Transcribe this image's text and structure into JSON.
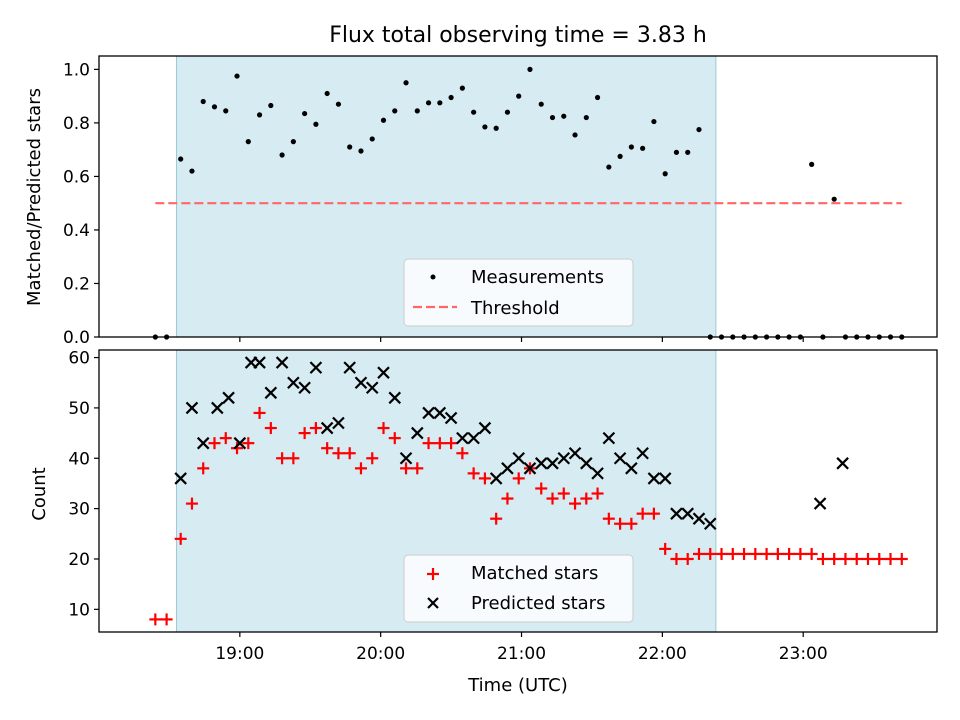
{
  "chart_data": {
    "title": "Flux total observing time = 3.83 h",
    "xlabel": "Time (UTC)",
    "x_unit": "hours UTC",
    "xlim": [
      18.0,
      23.95
    ],
    "xticks": [
      {
        "value": 19,
        "label": "19:00"
      },
      {
        "value": 20,
        "label": "20:00"
      },
      {
        "value": 21,
        "label": "21:00"
      },
      {
        "value": 22,
        "label": "22:00"
      },
      {
        "value": 23,
        "label": "23:00"
      }
    ],
    "shaded_span": [
      18.55,
      22.38
    ],
    "colors": {
      "span": "#add8e6",
      "threshold": "#ff6666",
      "matched": "#ff0000",
      "predicted": "#000000"
    },
    "panels": [
      {
        "type": "scatter",
        "ylabel": "Matched/Predicted stars",
        "ylim": [
          0,
          1.05
        ],
        "yticks": [
          {
            "value": 0.0,
            "label": "0.0"
          },
          {
            "value": 0.2,
            "label": "0.2"
          },
          {
            "value": 0.4,
            "label": "0.4"
          },
          {
            "value": 0.6,
            "label": "0.6"
          },
          {
            "value": 0.8,
            "label": "0.8"
          },
          {
            "value": 1.0,
            "label": "1.0"
          }
        ],
        "threshold": {
          "y": 0.5,
          "x_range": [
            18.4,
            23.7
          ]
        },
        "legend": {
          "position": "bottom-center",
          "entries": [
            "Measurements",
            "Threshold"
          ]
        },
        "series": [
          {
            "name": "Measurements",
            "marker": "dot",
            "x": [
              18.4,
              18.48,
              18.58,
              18.66,
              18.74,
              18.82,
              18.9,
              18.98,
              19.06,
              19.14,
              19.22,
              19.3,
              19.38,
              19.46,
              19.54,
              19.62,
              19.7,
              19.78,
              19.86,
              19.94,
              20.02,
              20.1,
              20.18,
              20.26,
              20.34,
              20.42,
              20.5,
              20.58,
              20.66,
              20.74,
              20.82,
              20.9,
              20.98,
              21.06,
              21.14,
              21.22,
              21.3,
              21.38,
              21.46,
              21.54,
              21.62,
              21.7,
              21.78,
              21.86,
              21.94,
              22.02,
              22.1,
              22.18,
              22.26,
              22.34,
              22.42,
              22.5,
              22.58,
              22.66,
              22.74,
              22.82,
              22.9,
              22.98,
              23.06,
              23.14,
              23.22,
              23.3,
              23.38,
              23.46,
              23.54,
              23.62,
              23.7
            ],
            "values": [
              0,
              0,
              0.665,
              0.62,
              0.88,
              0.86,
              0.845,
              0.975,
              0.73,
              0.83,
              0.865,
              0.68,
              0.73,
              0.835,
              0.795,
              0.91,
              0.87,
              0.71,
              0.695,
              0.74,
              0.81,
              0.845,
              0.95,
              0.845,
              0.875,
              0.875,
              0.895,
              0.93,
              0.84,
              0.785,
              0.78,
              0.84,
              0.9,
              1.0,
              0.87,
              0.82,
              0.825,
              0.755,
              0.82,
              0.895,
              0.635,
              0.675,
              0.71,
              0.705,
              0.805,
              0.61,
              0.69,
              0.69,
              0.775,
              0,
              0,
              0,
              0,
              0,
              0,
              0,
              0,
              0,
              0.645,
              0,
              0.515,
              0,
              0,
              0,
              0,
              0,
              0
            ]
          }
        ]
      },
      {
        "type": "scatter",
        "ylabel": "Count",
        "ylim": [
          5.5,
          61.5
        ],
        "yticks": [
          {
            "value": 10,
            "label": "10"
          },
          {
            "value": 20,
            "label": "20"
          },
          {
            "value": 30,
            "label": "30"
          },
          {
            "value": 40,
            "label": "40"
          },
          {
            "value": 50,
            "label": "50"
          },
          {
            "value": 60,
            "label": "60"
          }
        ],
        "legend": {
          "position": "bottom-center",
          "entries": [
            "Matched stars",
            "Predicted stars"
          ]
        },
        "series": [
          {
            "name": "Matched stars",
            "marker": "plus",
            "x": [
              18.4,
              18.48,
              18.58,
              18.66,
              18.74,
              18.82,
              18.9,
              18.98,
              19.06,
              19.14,
              19.22,
              19.3,
              19.38,
              19.46,
              19.54,
              19.62,
              19.7,
              19.78,
              19.86,
              19.94,
              20.02,
              20.1,
              20.18,
              20.26,
              20.34,
              20.42,
              20.5,
              20.58,
              20.66,
              20.74,
              20.82,
              20.9,
              20.98,
              21.06,
              21.14,
              21.22,
              21.3,
              21.38,
              21.46,
              21.54,
              21.62,
              21.7,
              21.78,
              21.86,
              21.94,
              22.02,
              22.1,
              22.18,
              22.26,
              22.34,
              22.42,
              22.5,
              22.58,
              22.66,
              22.74,
              22.82,
              22.9,
              22.98,
              23.06,
              23.14,
              23.22,
              23.3,
              23.38,
              23.46,
              23.54,
              23.62,
              23.7
            ],
            "values": [
              8,
              8,
              24,
              31,
              38,
              43,
              44,
              42,
              43,
              49,
              46,
              40,
              40,
              45,
              46,
              42,
              41,
              41,
              38,
              40,
              46,
              44,
              38,
              38,
              43,
              43,
              43,
              41,
              37,
              36,
              28,
              32,
              36,
              38,
              34,
              32,
              33,
              31,
              32,
              33,
              28,
              27,
              27,
              29,
              29,
              22,
              20,
              20,
              21,
              21,
              21,
              21,
              21,
              21,
              21,
              21,
              21,
              21,
              21,
              20,
              20,
              20,
              20,
              20,
              20,
              20,
              20
            ]
          },
          {
            "name": "Predicted stars",
            "marker": "x",
            "x": [
              18.58,
              18.66,
              18.74,
              18.84,
              18.92,
              19.0,
              19.08,
              19.14,
              19.22,
              19.3,
              19.38,
              19.46,
              19.54,
              19.62,
              19.7,
              19.78,
              19.86,
              19.94,
              20.02,
              20.1,
              20.18,
              20.26,
              20.34,
              20.42,
              20.5,
              20.58,
              20.66,
              20.74,
              20.82,
              20.9,
              20.98,
              21.06,
              21.14,
              21.22,
              21.3,
              21.38,
              21.46,
              21.54,
              21.62,
              21.7,
              21.78,
              21.86,
              21.94,
              22.02,
              22.1,
              22.18,
              22.26,
              22.34,
              23.12,
              23.28
            ],
            "values": [
              36,
              50,
              43,
              50,
              52,
              43,
              59,
              59,
              53,
              59,
              55,
              54,
              58,
              46,
              47,
              58,
              55,
              54,
              57,
              52,
              40,
              45,
              49,
              49,
              48,
              44,
              44,
              46,
              36,
              38,
              40,
              38,
              39,
              39,
              40,
              41,
              39,
              37,
              44,
              40,
              38,
              41,
              36,
              36,
              29,
              29,
              28,
              27,
              31,
              39
            ]
          }
        ]
      }
    ]
  }
}
